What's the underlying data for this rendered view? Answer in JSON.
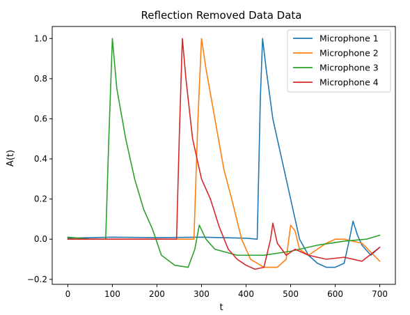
{
  "chart_data": {
    "type": "line",
    "title": "Reflection Removed Data Data",
    "xlabel": "t",
    "ylabel": "A(t)",
    "xlim": [
      -35,
      735
    ],
    "ylim": [
      -0.225,
      1.06
    ],
    "x_ticks": [
      0,
      100,
      200,
      300,
      400,
      500,
      600,
      700
    ],
    "y_ticks": [
      -0.2,
      0.0,
      0.2,
      0.4,
      0.6,
      0.8,
      1.0
    ],
    "x_tick_labels": [
      "0",
      "100",
      "200",
      "300",
      "400",
      "500",
      "600",
      "700"
    ],
    "y_tick_labels": [
      "−0.2",
      "0.0",
      "0.2",
      "0.4",
      "0.6",
      "0.8",
      "1.0"
    ],
    "grid": false,
    "legend_position": "upper right",
    "series": [
      {
        "name": "Microphone 1",
        "color": "#1f77b4",
        "x": [
          0,
          100,
          200,
          300,
          400,
          425,
          432,
          437,
          445,
          460,
          480,
          500,
          520,
          540,
          560,
          580,
          600,
          620,
          632,
          640,
          650,
          660,
          680,
          700
        ],
        "y": [
          0.005,
          0.01,
          0.008,
          0.01,
          0.005,
          0.0,
          0.7,
          1.0,
          0.85,
          0.6,
          0.4,
          0.2,
          0.0,
          -0.08,
          -0.12,
          -0.14,
          -0.14,
          -0.12,
          0.0,
          0.09,
          0.02,
          -0.03,
          -0.08,
          -0.04
        ]
      },
      {
        "name": "Microphone 2",
        "color": "#ff7f0e",
        "x": [
          0,
          100,
          200,
          250,
          283,
          292,
          300,
          310,
          330,
          350,
          370,
          390,
          410,
          440,
          470,
          490,
          500,
          510,
          520,
          540,
          560,
          580,
          600,
          620,
          660,
          700
        ],
        "y": [
          0.0,
          0.0,
          0.0,
          0.0,
          0.0,
          0.6,
          1.0,
          0.85,
          0.6,
          0.35,
          0.18,
          0.0,
          -0.1,
          -0.14,
          -0.14,
          -0.1,
          0.07,
          0.04,
          -0.05,
          -0.08,
          -0.05,
          -0.02,
          0.0,
          0.0,
          -0.02,
          -0.11
        ]
      },
      {
        "name": "Microphone 3",
        "color": "#2ca02c",
        "x": [
          0,
          50,
          85,
          92,
          100,
          110,
          130,
          150,
          170,
          190,
          210,
          240,
          270,
          285,
          295,
          310,
          330,
          380,
          440,
          500,
          560,
          620,
          670,
          700
        ],
        "y": [
          0.01,
          0.0,
          0.0,
          0.5,
          1.0,
          0.75,
          0.5,
          0.3,
          0.15,
          0.05,
          -0.08,
          -0.13,
          -0.14,
          -0.05,
          0.07,
          0.0,
          -0.05,
          -0.08,
          -0.08,
          -0.06,
          -0.03,
          -0.01,
          0.0,
          0.02
        ]
      },
      {
        "name": "Microphone 4",
        "color": "#d62728",
        "x": [
          0,
          100,
          200,
          244,
          250,
          257,
          265,
          280,
          300,
          320,
          340,
          360,
          380,
          400,
          420,
          440,
          455,
          460,
          470,
          490,
          510,
          540,
          580,
          620,
          660,
          700
        ],
        "y": [
          0.0,
          0.0,
          0.0,
          0.0,
          0.5,
          1.0,
          0.8,
          0.5,
          0.3,
          0.2,
          0.06,
          -0.05,
          -0.1,
          -0.13,
          -0.15,
          -0.14,
          0.0,
          0.08,
          -0.02,
          -0.08,
          -0.05,
          -0.08,
          -0.1,
          -0.09,
          -0.11,
          -0.04
        ]
      }
    ]
  }
}
